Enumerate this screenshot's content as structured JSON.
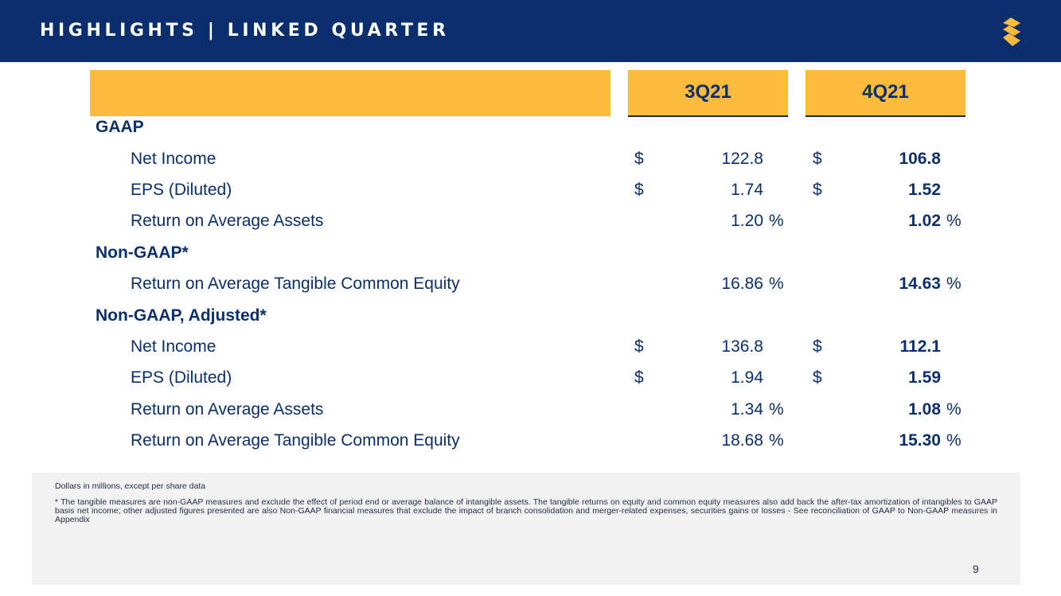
{
  "header": {
    "title": "HIGHLIGHTS | LINKED QUARTER",
    "logo_icon": "gold-s-logo-icon",
    "background_color": "#0a2e6e",
    "accent_color": "#fdbb3c"
  },
  "columns": {
    "q3": "3Q21",
    "q4": "4Q21"
  },
  "sections": [
    {
      "title": "GAAP",
      "rows": [
        {
          "label": "Net Income",
          "q3": "122.8",
          "q4": "106.8",
          "dollar": "$",
          "pct": ""
        },
        {
          "label": "EPS (Diluted)",
          "q3": "1.74",
          "q4": "1.52",
          "dollar": "$",
          "pct": ""
        },
        {
          "label": "Return on Average Assets",
          "q3": "1.20",
          "q4": "1.02",
          "dollar": "",
          "pct": "%"
        }
      ]
    },
    {
      "title": "Non-GAAP*",
      "rows": [
        {
          "label": "Return on Average Tangible Common Equity",
          "q3": "16.86",
          "q4": "14.63",
          "dollar": "",
          "pct": "%"
        }
      ]
    },
    {
      "title": "Non-GAAP, Adjusted*",
      "rows": [
        {
          "label": "Net Income",
          "q3": "136.8",
          "q4": "112.1",
          "dollar": "$",
          "pct": ""
        },
        {
          "label": "EPS (Diluted)",
          "q3": "1.94",
          "q4": "1.59",
          "dollar": "$",
          "pct": ""
        },
        {
          "label": "Return on Average Assets",
          "q3": "1.34",
          "q4": "1.08",
          "dollar": "",
          "pct": "%"
        },
        {
          "label": "Return on Average Tangible Common Equity",
          "q3": "18.68",
          "q4": "15.30",
          "dollar": "",
          "pct": "%"
        }
      ]
    }
  ],
  "notes": {
    "units": "Dollars in millions, except per share data",
    "footnote": "*   The tangible measures are non-GAAP measures and exclude the effect of period end or average balance of intangible assets. The tangible returns on equity and common equity measures also add back the after-tax amortization of intangibles to GAAP basis net income; other adjusted figures presented are also Non-GAAP financial measures that exclude the impact of branch consolidation and merger-related expenses, securities gains or losses - See reconciliation of GAAP to Non-GAAP measures in Appendix"
  },
  "page_number": "9"
}
